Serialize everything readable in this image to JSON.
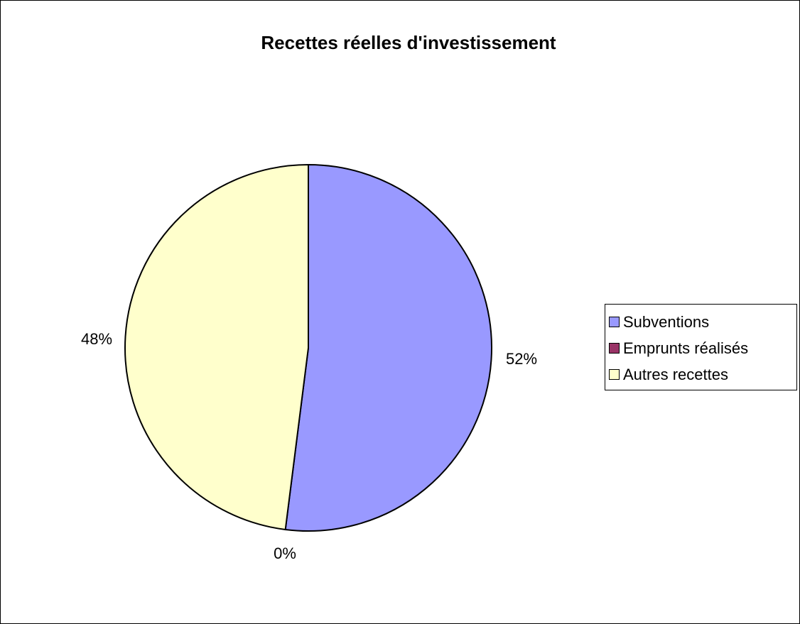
{
  "chart_data": {
    "type": "pie",
    "title": "Recettes réelles d'investissement",
    "slices": [
      {
        "name": "Subventions",
        "value": 52,
        "label": "52%",
        "color": "#9999ff"
      },
      {
        "name": "Emprunts réalisés",
        "value": 0,
        "label": "0%",
        "color": "#993366"
      },
      {
        "name": "Autres recettes",
        "value": 48,
        "label": "48%",
        "color": "#ffffcc"
      }
    ],
    "legend_placement": "right"
  }
}
